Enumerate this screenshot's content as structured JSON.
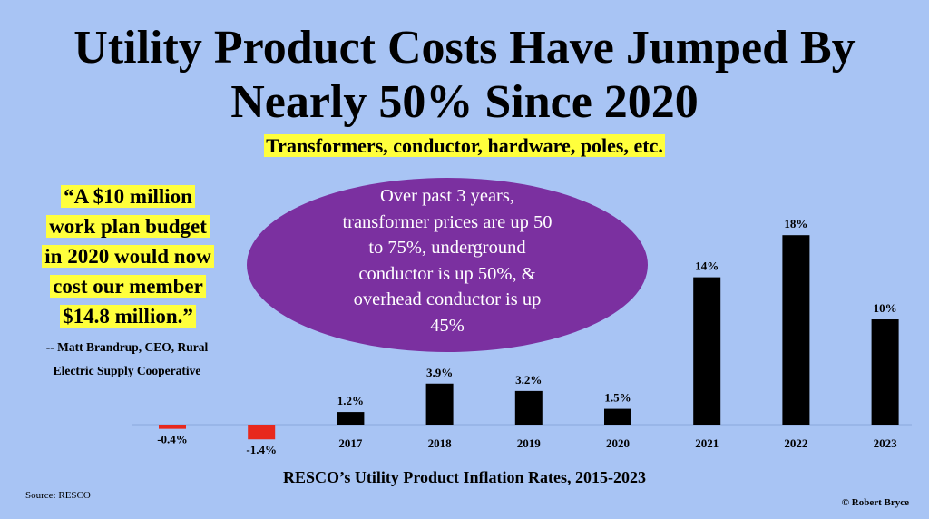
{
  "title_line1": "Utility Product Costs Have Jumped By",
  "title_line2": "Nearly 50% Since 2020",
  "subtitle": "Transformers, conductor, hardware, poles, etc.",
  "quote_lines": [
    "“A $10 million ",
    "work plan budget",
    "in 2020 would now",
    "cost our member ",
    "$14.8 million.”"
  ],
  "attribution_lines": [
    "-- Matt Brandrup, CEO, Rural",
    "Electric Supply Cooperative"
  ],
  "callout_lines": [
    "Over past 3 years,",
    "transformer prices are up 50",
    "to 75%, underground",
    "conductor is up 50%, &",
    "overhead conductor is up",
    "45%"
  ],
  "x_caption": "RESCO’s Utility Product Inflation Rates, 2015-2023",
  "source": "Source: RESCO",
  "copyright": "© Robert Bryce",
  "colors": {
    "background": "#a8c4f4",
    "positive": "#000000",
    "negative": "#e8281c",
    "highlight": "#ffff3c",
    "callout": "#7b30a0"
  },
  "chart_data": {
    "type": "bar",
    "title": "",
    "xlabel": "RESCO’s Utility Product Inflation Rates, 2015-2023",
    "ylabel": "",
    "categories": [
      "",
      "",
      "2017",
      "2018",
      "2019",
      "2020",
      "2021",
      "2022",
      "2023"
    ],
    "values": [
      -0.4,
      -1.4,
      1.2,
      3.9,
      3.2,
      1.5,
      14,
      18,
      10
    ],
    "data_labels": [
      "-0.4%",
      "-1.4%",
      "1.2%",
      "3.9%",
      "3.2%",
      "1.5%",
      "14%",
      "18%",
      "10%"
    ],
    "grid": false,
    "legend": "none"
  }
}
